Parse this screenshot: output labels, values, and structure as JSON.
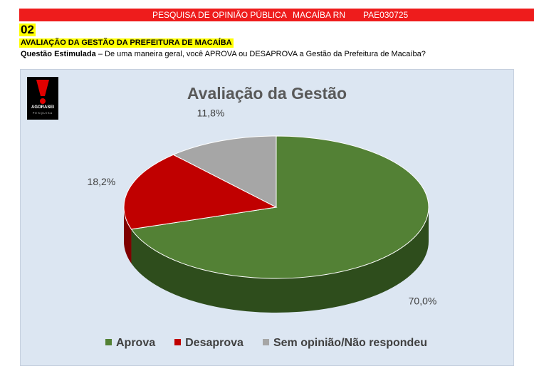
{
  "header": {
    "survey": "PESQUISA DE OPINIÃO PÚBLICA",
    "location": "MACAÍBA RN",
    "code": "PAE030725"
  },
  "question": {
    "number": "02",
    "title": "AVALIAÇÃO DA GESTÃO DA PREFEITURA DE MACAÍBA",
    "type_label": "Questão Estimulada",
    "text": " – De uma maneira geral, você APROVA ou DESAPROVA a Gestão da Prefeitura de Macaíba?"
  },
  "logo": {
    "text": "AGORASEI",
    "subtext": "PESQUISA"
  },
  "chart_data": {
    "type": "pie",
    "title": "Avaliação da Gestão",
    "categories": [
      "Aprova",
      "Desaprova",
      "Sem opinião/Não respondeu"
    ],
    "values": [
      70.0,
      18.2,
      11.8
    ],
    "labels": [
      "70,0%",
      "18,2%",
      "11,8%"
    ],
    "colors": [
      "#538135",
      "#c00000",
      "#a6a6a6"
    ],
    "side_colors": [
      "#2e4d1c",
      "#7f0000",
      "#6f6f6f"
    ],
    "legend_position": "bottom",
    "style": "3d"
  }
}
